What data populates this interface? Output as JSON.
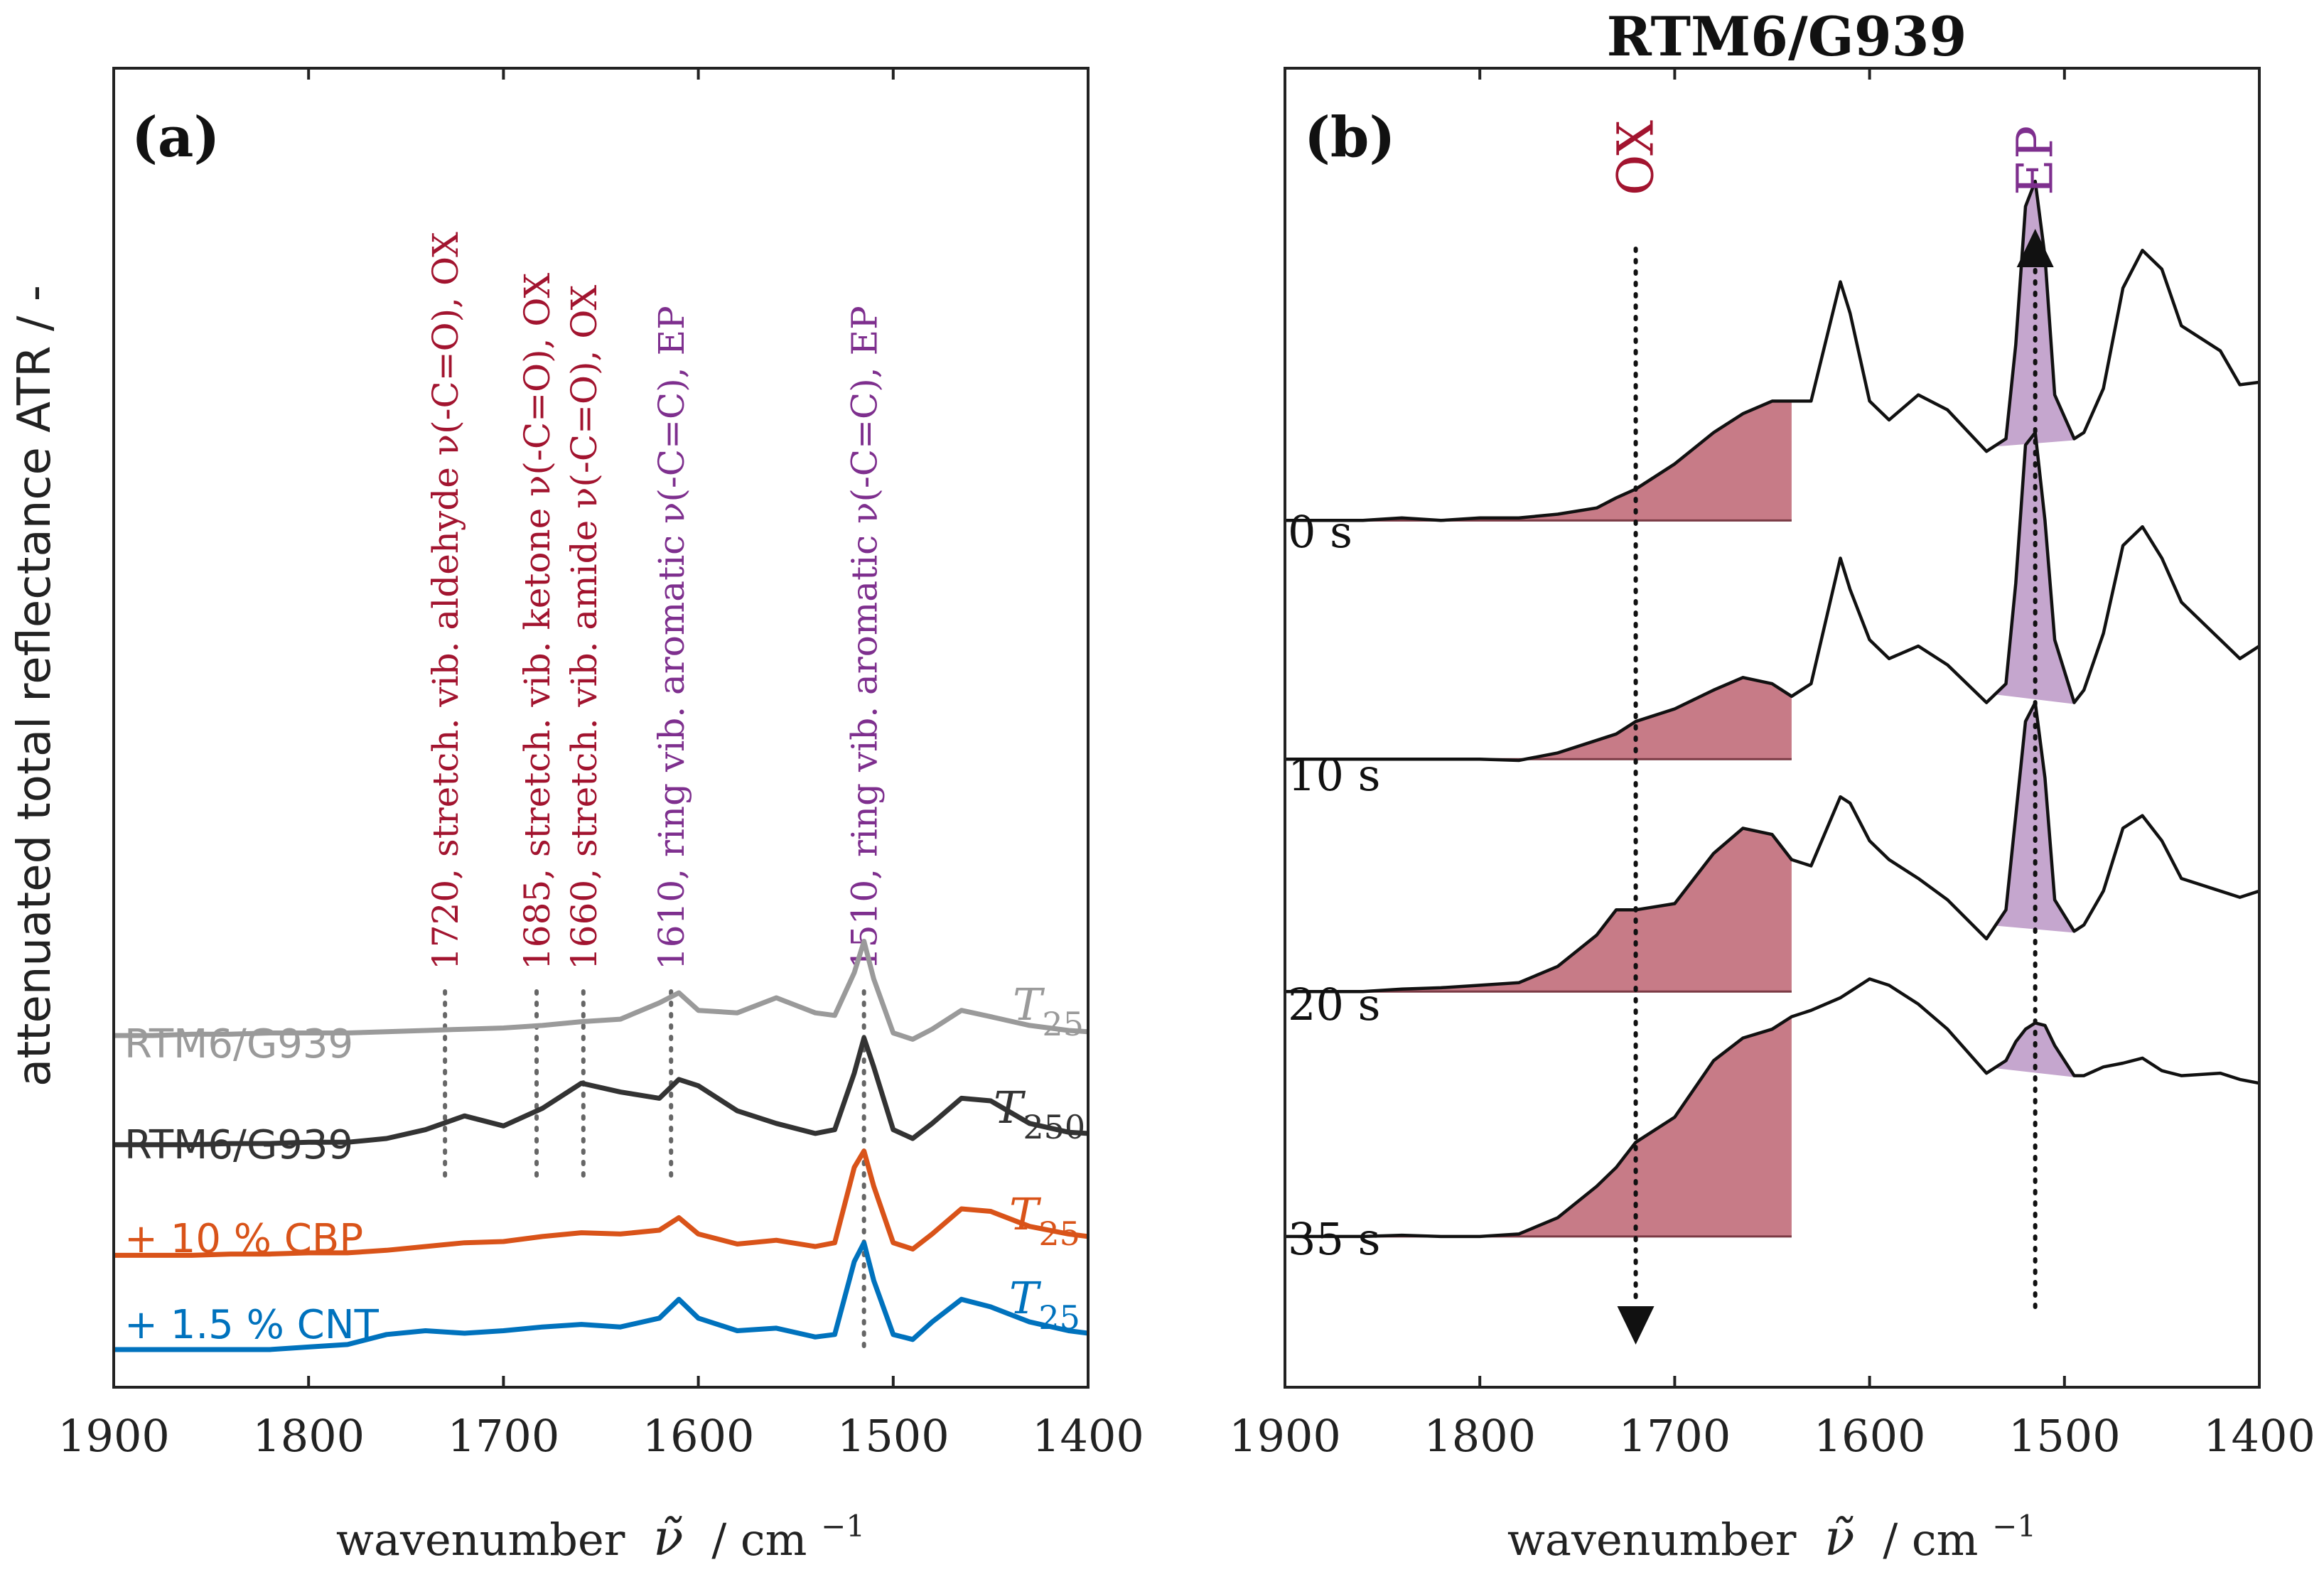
{
  "ylabel": "attenuated total reflectance ATR / -",
  "xlabel_prefix": "wavenumber",
  "xlabel_symbol": "ν̃",
  "xlabel_unit": "/ cm",
  "xlabel_unit_exp": "−1",
  "colors": {
    "ox": "#a2142f",
    "ep": "#7e2f8e",
    "ox_fill": "#c77b87",
    "ep_fill": "#c5a6ce",
    "gray": "#9a9a9a",
    "dark": "#333333",
    "cbp": "#d95319",
    "cnt": "#0072bd",
    "axis": "#222222"
  },
  "panel_a": {
    "label": "(a)",
    "annotations": [
      {
        "text": "1720, stretch. vib. aldehyde ν(-C=O), OX",
        "x": 1730,
        "group": "ox"
      },
      {
        "text": "1685, stretch. vib. ketone ν(-C=O), OX",
        "x": 1683,
        "group": "ox"
      },
      {
        "text": "1660, stretch. vib. amide ν(-C=O), OX",
        "x": 1659,
        "group": "ox"
      },
      {
        "text": "1610, ring vib. aromatic ν(-C=C), EP",
        "x": 1614,
        "group": "ep"
      },
      {
        "text": "1510, ring vib. aromatic ν(-C=C), EP",
        "x": 1515,
        "group": "ep"
      }
    ],
    "series": [
      {
        "name": "RTM6/G939",
        "temp_base": "T",
        "temp_sub": "25",
        "color": "gray"
      },
      {
        "name": "RTM6/G939",
        "temp_base": "T",
        "temp_sub": "250",
        "color": "dark"
      },
      {
        "name": "+ 10 % CBP",
        "temp_base": "T",
        "temp_sub": "25",
        "color": "cbp"
      },
      {
        "name": "+ 1.5 % CNT",
        "temp_base": "T",
        "temp_sub": "25",
        "color": "cnt"
      }
    ]
  },
  "panel_b": {
    "label": "(b)",
    "title": "RTM6/G939",
    "ox_label": "OX",
    "ep_label": "EP",
    "ox_x": 1720,
    "ep_x": 1515,
    "ox_band": [
      1900,
      1640
    ],
    "ep_band": [
      1535,
      1495
    ],
    "times": [
      "0 s",
      "10 s",
      "20 s",
      "35 s"
    ]
  },
  "chart_data": [
    {
      "type": "line",
      "panel": "(a)",
      "xlabel": "wavenumber ν̃ / cm−1",
      "ylabel": "attenuated total reflectance ATR / -",
      "xlim": [
        1900,
        1400
      ],
      "ylim": [
        0,
        10.5
      ],
      "xticks": [
        "1900",
        "1800",
        "1700",
        "1600",
        "1500",
        "1400"
      ],
      "x": [
        1900,
        1880,
        1860,
        1840,
        1820,
        1800,
        1780,
        1760,
        1740,
        1720,
        1700,
        1680,
        1660,
        1640,
        1620,
        1610,
        1600,
        1580,
        1560,
        1540,
        1530,
        1520,
        1515,
        1510,
        1500,
        1490,
        1480,
        1465,
        1450,
        1430,
        1410,
        1400
      ],
      "series": [
        {
          "name": "RTM6/G939 T25",
          "values": [
            2.8,
            2.8,
            2.81,
            2.81,
            2.82,
            2.82,
            2.82,
            2.83,
            2.84,
            2.85,
            2.86,
            2.88,
            2.91,
            2.93,
            3.06,
            3.14,
            3.0,
            2.98,
            3.1,
            2.98,
            2.96,
            3.3,
            3.55,
            3.25,
            2.82,
            2.77,
            2.85,
            3.0,
            2.95,
            2.88,
            2.84,
            2.83
          ]
        },
        {
          "name": "RTM6/G939 T250",
          "values": [
            1.93,
            1.93,
            1.93,
            1.94,
            1.94,
            1.95,
            1.95,
            1.98,
            2.05,
            2.16,
            2.08,
            2.22,
            2.42,
            2.35,
            2.3,
            2.45,
            2.4,
            2.2,
            2.1,
            2.02,
            2.05,
            2.5,
            2.78,
            2.55,
            2.05,
            1.98,
            2.1,
            2.3,
            2.28,
            2.1,
            2.03,
            2.02
          ]
        },
        {
          "name": "+ 10 % CBP T25",
          "values": [
            1.05,
            1.05,
            1.05,
            1.06,
            1.06,
            1.07,
            1.07,
            1.09,
            1.12,
            1.15,
            1.16,
            1.2,
            1.23,
            1.22,
            1.25,
            1.35,
            1.22,
            1.14,
            1.17,
            1.12,
            1.15,
            1.75,
            1.88,
            1.6,
            1.15,
            1.1,
            1.22,
            1.42,
            1.4,
            1.28,
            1.22,
            1.2
          ]
        },
        {
          "name": "+ 1.5 % CNT T25",
          "values": [
            0.3,
            0.3,
            0.3,
            0.3,
            0.3,
            0.32,
            0.34,
            0.42,
            0.45,
            0.43,
            0.45,
            0.48,
            0.5,
            0.48,
            0.55,
            0.7,
            0.55,
            0.45,
            0.47,
            0.4,
            0.42,
            1.0,
            1.15,
            0.85,
            0.42,
            0.38,
            0.52,
            0.7,
            0.64,
            0.52,
            0.45,
            0.43
          ]
        }
      ],
      "legend": [
        "RTM6/G939 T25",
        "RTM6/G939 T250",
        "+ 10 % CBP T25",
        "+ 1.5 % CNT T25"
      ]
    },
    {
      "type": "area",
      "panel": "(b)",
      "title": "RTM6/G939",
      "xlabel": "wavenumber ν̃ / cm−1",
      "xlim": [
        1900,
        1400
      ],
      "ylim": [
        0,
        10.5
      ],
      "xticks": [
        "1900",
        "1800",
        "1700",
        "1600",
        "1500",
        "1400"
      ],
      "x": [
        1900,
        1880,
        1860,
        1840,
        1820,
        1800,
        1780,
        1760,
        1740,
        1730,
        1720,
        1700,
        1680,
        1665,
        1650,
        1640,
        1630,
        1615,
        1610,
        1600,
        1590,
        1575,
        1560,
        1540,
        1530,
        1525,
        1520,
        1515,
        1510,
        1505,
        1495,
        1490,
        1480,
        1470,
        1460,
        1450,
        1440,
        1420,
        1410,
        1400
      ],
      "series": [
        {
          "name": "0 s",
          "values": [
            6.9,
            6.9,
            6.9,
            6.92,
            6.9,
            6.92,
            6.92,
            6.95,
            7.0,
            7.08,
            7.15,
            7.35,
            7.6,
            7.75,
            7.85,
            7.85,
            7.85,
            8.8,
            8.55,
            7.85,
            7.7,
            7.9,
            7.78,
            7.45,
            7.55,
            8.3,
            9.4,
            9.6,
            9.0,
            7.9,
            7.55,
            7.6,
            7.95,
            8.75,
            9.05,
            8.9,
            8.45,
            8.25,
            7.98,
            8.0
          ]
        },
        {
          "name": "10 s",
          "values": [
            5.0,
            5.0,
            5.0,
            5.0,
            5.0,
            5.0,
            4.99,
            5.05,
            5.15,
            5.2,
            5.3,
            5.4,
            5.55,
            5.65,
            5.6,
            5.5,
            5.6,
            6.6,
            6.35,
            5.95,
            5.8,
            5.9,
            5.75,
            5.45,
            5.6,
            6.4,
            7.5,
            7.6,
            6.9,
            5.95,
            5.45,
            5.55,
            6.0,
            6.7,
            6.85,
            6.6,
            6.25,
            5.95,
            5.8,
            5.9
          ]
        },
        {
          "name": "20 s",
          "values": [
            3.15,
            3.15,
            3.15,
            3.17,
            3.18,
            3.2,
            3.22,
            3.35,
            3.6,
            3.8,
            3.8,
            3.85,
            4.25,
            4.45,
            4.4,
            4.2,
            4.15,
            4.7,
            4.65,
            4.35,
            4.2,
            4.05,
            3.88,
            3.57,
            3.8,
            4.55,
            5.3,
            5.45,
            4.85,
            3.88,
            3.63,
            3.68,
            3.95,
            4.45,
            4.55,
            4.35,
            4.05,
            3.95,
            3.9,
            3.95
          ]
        },
        {
          "name": "35 s",
          "values": [
            1.2,
            1.2,
            1.2,
            1.21,
            1.2,
            1.2,
            1.22,
            1.35,
            1.6,
            1.75,
            1.95,
            2.15,
            2.6,
            2.78,
            2.85,
            2.95,
            3.0,
            3.1,
            3.15,
            3.25,
            3.2,
            3.05,
            2.85,
            2.5,
            2.6,
            2.75,
            2.85,
            2.9,
            2.88,
            2.72,
            2.48,
            2.48,
            2.55,
            2.58,
            2.62,
            2.52,
            2.48,
            2.5,
            2.45,
            2.42
          ]
        }
      ],
      "annotations": [
        "OX",
        "EP"
      ]
    }
  ]
}
